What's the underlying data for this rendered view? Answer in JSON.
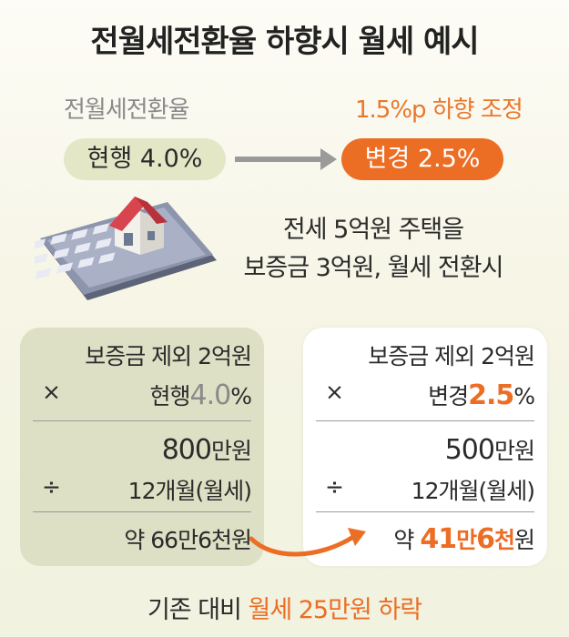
{
  "title": "전월세전환율 하향시 월세 예시",
  "rate_label": "전월세전환율",
  "change_label": "1.5%p 하향 조정",
  "current_pill": "현행 4.0%",
  "new_pill": "변경 2.5%",
  "description": {
    "line1": "전세 5억원 주택을",
    "line2": "보증금 3억원, 월세 전환시"
  },
  "left_panel": {
    "row1": "보증금 제외 2억원",
    "row2_symbol": "×",
    "row2_label": "현행",
    "row2_value": "4.0",
    "row2_unit": "%",
    "row3_number": "800",
    "row3_unit": "만원",
    "row4_symbol": "÷",
    "row4_label": "12개월(월세)",
    "row5_prefix": "약",
    "row5_value": "66만6천원"
  },
  "right_panel": {
    "row1": "보증금 제외 2억원",
    "row2_symbol": "×",
    "row2_label": "변경",
    "row2_value": "2.5",
    "row2_unit": "%",
    "row3_number": "500",
    "row3_unit": "만원",
    "row4_symbol": "÷",
    "row4_label": "12개월(월세)",
    "row5_prefix": "약",
    "row5_num1": "41",
    "row5_unit1": "만",
    "row5_num2": "6",
    "row5_unit2": "천",
    "row5_suffix": "원"
  },
  "footer": {
    "prefix": "기존 대비",
    "highlight": "월세 25만원 하락"
  },
  "colors": {
    "accent_orange": "#ec6d24",
    "pill_green": "#e4e7c6",
    "panel_green": "#dde0c4",
    "text_grey": "#8a8a8a"
  },
  "icons": [
    "calculator-icon",
    "house-icon",
    "right-arrow-icon",
    "curved-arrow-icon"
  ]
}
